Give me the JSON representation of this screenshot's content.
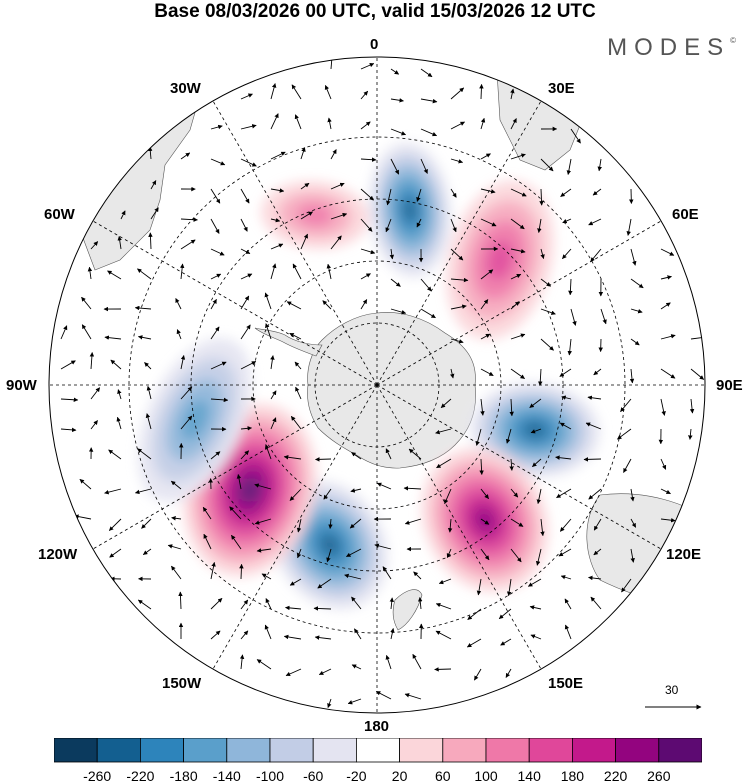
{
  "title": "Base 08/03/2026 00 UTC, valid 15/03/2026 12 UTC",
  "brand": "MODES",
  "brand_mark": "©",
  "longitude_labels": {
    "top": "0",
    "e30": "30E",
    "e60": "60E",
    "e90": "90E",
    "e120": "120E",
    "e150": "150E",
    "bottom": "180",
    "w150": "150W",
    "w120": "120W",
    "w90": "90W",
    "w60": "60W",
    "w30": "30W"
  },
  "reference_vector": {
    "value": "30"
  },
  "colorbar": {
    "ticks": [
      "-260",
      "-220",
      "-180",
      "-140",
      "-100",
      "-60",
      "-20",
      "20",
      "60",
      "100",
      "140",
      "180",
      "220",
      "260"
    ],
    "colors": [
      "#0b3a5e",
      "#135f90",
      "#2d84bb",
      "#5a9fcb",
      "#8fb6da",
      "#c2cde6",
      "#e4e4f1",
      "#ffffff",
      "#fbd6da",
      "#f7a9bd",
      "#ef78a8",
      "#e0479a",
      "#c3198b",
      "#93047f",
      "#5d0a72"
    ]
  },
  "anomaly_centers": [
    {
      "name": "neg-0e",
      "sign": "neg",
      "strength": 0.9
    },
    {
      "name": "pos-30e",
      "sign": "pos",
      "strength": 0.6
    },
    {
      "name": "neg-100e",
      "sign": "neg",
      "strength": 0.85
    },
    {
      "name": "pos-130e",
      "sign": "pos",
      "strength": 0.9
    },
    {
      "name": "neg-150w",
      "sign": "neg",
      "strength": 0.85
    },
    {
      "name": "pos-130w",
      "sign": "pos",
      "strength": 1.0
    },
    {
      "name": "neg-100w",
      "sign": "neg",
      "strength": 0.6
    },
    {
      "name": "pos-20w",
      "sign": "pos",
      "strength": 0.4
    }
  ]
}
